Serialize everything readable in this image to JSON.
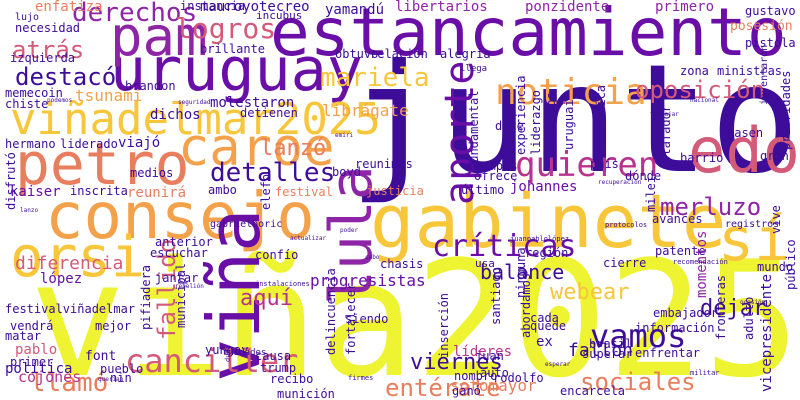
{
  "palette": {
    "indigo": "#3d0c99",
    "violet": "#6a0ea8",
    "purple": "#8e24a6",
    "magenta": "#b8338f",
    "pink": "#d35a78",
    "coral": "#e97e5f",
    "orange": "#f3a14a",
    "amber": "#f7c63b",
    "yellow": "#eef332"
  },
  "words": [
    {
      "text": "viña2025",
      "color": "yellow"
    },
    {
      "text": "junto",
      "color": "indigo"
    },
    {
      "text": "gabinete",
      "color": "amber"
    },
    {
      "text": "consejo",
      "color": "orange"
    },
    {
      "text": "estancamiento",
      "color": "violet"
    },
    {
      "text": "uruguay",
      "color": "violet"
    },
    {
      "text": "viñadelmar2025",
      "color": "amber"
    },
    {
      "text": "pam",
      "color": "purple"
    },
    {
      "text": "petro",
      "color": "coral"
    },
    {
      "text": "caroe",
      "color": "orange"
    },
    {
      "text": "lula",
      "color": "purple"
    },
    {
      "text": "viña",
      "color": "violet"
    },
    {
      "text": "orsi",
      "color": "amber"
    },
    {
      "text": "edo",
      "color": "pink"
    },
    {
      "text": "sí",
      "color": "amber"
    },
    {
      "text": "canciller",
      "color": "pink"
    },
    {
      "text": "noticia",
      "color": "orange"
    },
    {
      "text": "quieren",
      "color": "magenta"
    },
    {
      "text": "vamos",
      "color": "indigo"
    },
    {
      "text": "aporte",
      "color": "violet"
    },
    {
      "text": "derechos",
      "color": "purple"
    },
    {
      "text": "logros",
      "color": "pink"
    },
    {
      "text": "opos­ición",
      "color": "pink"
    },
    {
      "text": "sociales",
      "color": "coral"
    },
    {
      "text": "críticas",
      "color": "violet"
    },
    {
      "text": "detalles",
      "color": "indigo"
    },
    {
      "text": "merluzo",
      "color": "purple"
    },
    {
      "text": "entérate",
      "color": "coral"
    },
    {
      "text": "llamó",
      "color": "coral"
    },
    {
      "text": "balance",
      "color": "indigo"
    },
    {
      "text": "dejar",
      "color": "indigo"
    },
    {
      "text": "fallido",
      "color": "pink"
    },
    {
      "text": "destacó",
      "color": "indigo"
    },
    {
      "text": "mariela",
      "color": "amber"
    },
    {
      "text": "fallon",
      "color": "indigo"
    },
    {
      "text": "lanzó",
      "color": "coral"
    },
    {
      "text": "atrás",
      "color": "pink"
    },
    {
      "text": "viernes",
      "color": "indigo"
    },
    {
      "text": "aquí",
      "color": "magenta"
    },
    {
      "text": "sotomayor",
      "color": "coral"
    },
    {
      "text": "momentos",
      "color": "purple"
    },
    {
      "text": "diferencia",
      "color": "pink"
    },
    {
      "text": "tsunami",
      "color": "orange"
    },
    {
      "text": "librágate",
      "color": "orange"
    },
    {
      "text": "molestaron",
      "color": "indigo"
    },
    {
      "text": "progresistas",
      "color": "violet"
    },
    {
      "text": "libertarios",
      "color": "purple"
    },
    {
      "text": "mauroyotecreo",
      "color": "indigo"
    },
    {
      "text": "yamandú",
      "color": "indigo"
    },
    {
      "text": "enfatiza",
      "color": "coral"
    },
    {
      "text": "kaiser",
      "color": "violet"
    },
    {
      "text": "johannes",
      "color": "violet"
    },
    {
      "text": "festivalviñadelmar",
      "color": "indigo"
    },
    {
      "text": "webear",
      "color": "amber"
    },
    {
      "text": "política",
      "color": "indigo"
    },
    {
      "text": "pablo",
      "color": "pink"
    },
    {
      "text": "líderes",
      "color": "magenta"
    },
    {
      "text": "cojones",
      "color": "magenta"
    },
    {
      "text": "lópez",
      "color": "violet"
    },
    {
      "text": "información",
      "color": "indigo"
    },
    {
      "text": "ponzidente",
      "color": "purple"
    },
    {
      "text": "primero",
      "color": "purple"
    },
    {
      "text": "gustavo",
      "color": "indigo"
    },
    {
      "text": "posesión",
      "color": "coral"
    },
    {
      "text": "pistola",
      "color": "indigo"
    },
    {
      "text": "nin",
      "color": "indigo"
    },
    {
      "text": "font",
      "color": "indigo"
    },
    {
      "text": "pueblo",
      "color": "indigo"
    },
    {
      "text": "yungay",
      "color": "indigo"
    },
    {
      "text": "causa",
      "color": "indigo"
    },
    {
      "text": "trump",
      "color": "indigo"
    },
    {
      "text": "juan",
      "color": "indigo"
    },
    {
      "text": "auto",
      "color": "indigo"
    },
    {
      "text": "rodolfo",
      "color": "indigo"
    },
    {
      "text": "enfrentar",
      "color": "indigo"
    },
    {
      "text": "encarcela",
      "color": "indigo"
    },
    {
      "text": "región",
      "color": "indigo"
    },
    {
      "text": "chasis",
      "color": "indigo"
    },
    {
      "text": "cierre",
      "color": "indigo"
    },
    {
      "text": "siendo",
      "color": "indigo"
    },
    {
      "text": "quede",
      "color": "indigo"
    },
    {
      "text": "patente",
      "color": "indigo"
    },
    {
      "text": "avances",
      "color": "indigo"
    },
    {
      "text": "mundo",
      "color": "indigo"
    },
    {
      "text": "ambo",
      "color": "indigo"
    },
    {
      "text": "reunirá",
      "color": "coral"
    },
    {
      "text": "festival",
      "color": "coral"
    },
    {
      "text": "boyd",
      "color": "indigo"
    },
    {
      "text": "reunimos",
      "color": "indigo"
    },
    {
      "text": "justicia",
      "color": "coral"
    },
    {
      "text": "último",
      "color": "indigo"
    },
    {
      "text": "ofrece",
      "color": "indigo"
    },
    {
      "text": "tiempos",
      "color": "indigo"
    },
    {
      "text": "país",
      "color": "indigo"
    },
    {
      "text": "dónde",
      "color": "indigo"
    },
    {
      "text": "barrio",
      "color": "indigo"
    },
    {
      "text": "gran",
      "color": "indigo"
    },
    {
      "text": "pasen",
      "color": "indigo"
    },
    {
      "text": "prioridades",
      "color": "indigo"
    },
    {
      "text": "ministras",
      "color": "indigo"
    },
    {
      "text": "zona",
      "color": "indigo"
    },
    {
      "text": "dice",
      "color": "indigo"
    },
    {
      "text": "fundamental",
      "color": "indigo"
    },
    {
      "text": "liderazgo",
      "color": "indigo"
    },
    {
      "text": "desafíos",
      "color": "indigo"
    },
    {
      "text": "uruguai",
      "color": "indigo"
    },
    {
      "text": "histórica",
      "color": "indigo"
    },
    {
      "text": "experiencia",
      "color": "indigo"
    },
    {
      "text": "milei",
      "color": "indigo"
    },
    {
      "text": "estafador",
      "color": "indigo"
    },
    {
      "text": "hermano",
      "color": "indigo"
    },
    {
      "text": "liderado",
      "color": "indigo"
    },
    {
      "text": "viajó",
      "color": "indigo"
    },
    {
      "text": "necesidad",
      "color": "indigo"
    },
    {
      "text": "lujo",
      "color": "indigo"
    },
    {
      "text": "izquierda",
      "color": "indigo"
    },
    {
      "text": "brillante",
      "color": "indigo"
    },
    {
      "text": "incubus",
      "color": "indigo"
    },
    {
      "text": "dichos",
      "color": "indigo"
    },
    {
      "text": "detienen",
      "color": "indigo"
    },
    {
      "text": "obtuvo",
      "color": "indigo"
    },
    {
      "text": "relación",
      "color": "indigo"
    },
    {
      "text": "alegría",
      "color": "indigo"
    },
    {
      "text": "llega",
      "color": "indigo"
    },
    {
      "text": "instancia",
      "color": "indigo"
    },
    {
      "text": "brandon",
      "color": "indigo"
    },
    {
      "text": "memecoin",
      "color": "indigo"
    },
    {
      "text": "chiste",
      "color": "indigo"
    },
    {
      "text": "inscrita",
      "color": "indigo"
    },
    {
      "text": "medios",
      "color": "indigo"
    },
    {
      "text": "disfrutó",
      "color": "indigo"
    },
    {
      "text": "anterior",
      "color": "indigo"
    },
    {
      "text": "escuchar",
      "color": "indigo"
    },
    {
      "text": "jantar",
      "color": "indigo"
    },
    {
      "text": "confío",
      "color": "indigo"
    },
    {
      "text": "elefo",
      "color": "indigo"
    },
    {
      "text": "gabrielboric",
      "color": "indigo"
    },
    {
      "text": "delincuencia",
      "color": "indigo"
    },
    {
      "text": "fortalecer",
      "color": "indigo"
    },
    {
      "text": "inserción",
      "color": "indigo"
    },
    {
      "text": "ninguna",
      "color": "indigo"
    },
    {
      "text": "abordamos",
      "color": "indigo"
    },
    {
      "text": "santiago",
      "color": "indigo"
    },
    {
      "text": "cada",
      "color": "indigo"
    },
    {
      "text": "ex",
      "color": "indigo"
    },
    {
      "text": "brasil",
      "color": "indigo"
    },
    {
      "text": "superar",
      "color": "indigo"
    },
    {
      "text": "embajador",
      "color": "indigo"
    },
    {
      "text": "fronteras",
      "color": "indigo"
    },
    {
      "text": "adulto",
      "color": "indigo"
    },
    {
      "text": "vicepresidente",
      "color": "indigo"
    },
    {
      "text": "público",
      "color": "indigo"
    },
    {
      "text": "inventaron",
      "color": "indigo"
    },
    {
      "text": "vendrá",
      "color": "indigo"
    },
    {
      "text": "matar",
      "color": "indigo"
    },
    {
      "text": "mejor",
      "color": "indigo"
    },
    {
      "text": "primer",
      "color": "indigo"
    },
    {
      "text": "pifiadera",
      "color": "indigo"
    },
    {
      "text": "municipal",
      "color": "indigo"
    },
    {
      "text": "recibo",
      "color": "indigo"
    },
    {
      "text": "nombro",
      "color": "indigo"
    },
    {
      "text": "munición",
      "color": "indigo"
    },
    {
      "text": "ganó",
      "color": "indigo"
    },
    {
      "text": "unidades",
      "color": "indigo"
    },
    {
      "text": "vive",
      "color": "indigo"
    },
    {
      "text": "instalaciones",
      "color": "indigo"
    },
    {
      "text": "juanpablolópez",
      "color": "indigo"
    },
    {
      "text": "registros",
      "color": "indigo"
    },
    {
      "text": "protocolos",
      "color": "indigo"
    },
    {
      "text": "recomendación",
      "color": "indigo"
    },
    {
      "text": "militar",
      "color": "indigo"
    },
    {
      "text": "firmes",
      "color": "indigo"
    },
    {
      "text": "duda",
      "color": "indigo"
    },
    {
      "text": "querían",
      "color": "indigo"
    },
    {
      "text": "ocasión",
      "color": "indigo"
    },
    {
      "text": "poder",
      "color": "indigo"
    },
    {
      "text": "esperar",
      "color": "indigo"
    },
    {
      "text": "trabajar",
      "color": "indigo"
    },
    {
      "text": "nacional",
      "color": "indigo"
    },
    {
      "text": "seguridad",
      "color": "indigo"
    },
    {
      "text": "podemos",
      "color": "indigo"
    },
    {
      "text": "actualizar",
      "color": "indigo"
    },
    {
      "text": "usa",
      "color": "indigo"
    },
    {
      "text": "rebelión",
      "color": "indigo"
    },
    {
      "text": "cabo",
      "color": "indigo"
    },
    {
      "text": "emiri",
      "color": "indigo"
    },
    {
      "text": "recuperación",
      "color": "indigo"
    },
    {
      "text": "lanzo",
      "color": "indigo"
    }
  ]
}
